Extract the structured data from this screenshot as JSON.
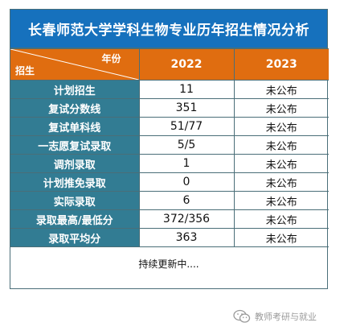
{
  "title": "长春师范大学学科生物专业历年招生情况分析",
  "header": {
    "corner_year": "年份",
    "corner_recruit": "招生",
    "col_2022": "2022",
    "col_2023": "2023"
  },
  "rows": [
    {
      "label": "计划招生",
      "v2022": "11",
      "v2023": "未公布"
    },
    {
      "label": "复试分数线",
      "v2022": "351",
      "v2023": "未公布"
    },
    {
      "label": "复试单科线",
      "v2022": "51/77",
      "v2023": "未公布"
    },
    {
      "label": "一志愿复试录取",
      "v2022": "5/5",
      "v2023": "未公布"
    },
    {
      "label": "调剂录取",
      "v2022": "1",
      "v2023": "未公布"
    },
    {
      "label": "计划推免录取",
      "v2022": "0",
      "v2023": "未公布"
    },
    {
      "label": "实际录取",
      "v2022": "6",
      "v2023": "未公布"
    },
    {
      "label": "录取最高/最低分",
      "v2022": "372/356",
      "v2023": "未公布"
    },
    {
      "label": "录取平均分",
      "v2022": "363",
      "v2023": "未公布"
    }
  ],
  "footer": "持续更新中....",
  "watermark": "教师考研与就业",
  "colors": {
    "title_bg": "#1671bd",
    "header_bg": "#e06d10",
    "label_bg": "#327c93"
  }
}
